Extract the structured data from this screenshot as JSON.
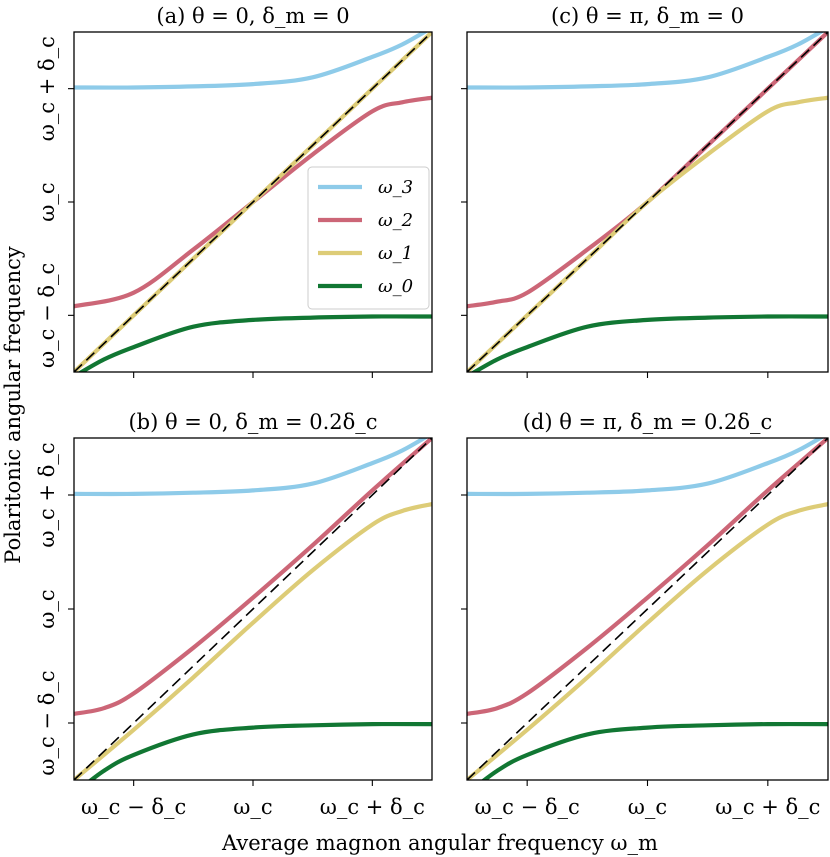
{
  "figure": {
    "xlabel": "Average magnon angular frequency ω_m",
    "ylabel": "Polaritonic angular frequency"
  },
  "chart_data": [
    {
      "type": "line",
      "panel": "a",
      "title": "(a) θ = 0, δ_m = 0",
      "theta": 0,
      "delta_m": 0,
      "x_range": [
        -1.5,
        1.5
      ],
      "y_range": [
        -1.5,
        1.5
      ],
      "x_ticks": [
        -1,
        0,
        1
      ],
      "y_ticks": [
        -1,
        0,
        1
      ],
      "x_tick_labels": [
        "ω_c − δ_c",
        "ω_c",
        "ω_c + δ_c"
      ],
      "y_tick_labels": [
        "ω_c − δ_c",
        "ω_c",
        "ω_c + δ_c"
      ],
      "show_xticklabels": false,
      "show_yticklabels": true,
      "series": [
        {
          "name": "ω_3",
          "color": "#8ecbe9",
          "x": [
            -1.5,
            -1,
            -0.5,
            0,
            0.5,
            1,
            1.25,
            1.5
          ],
          "values": [
            1.01,
            1.01,
            1.02,
            1.04,
            1.1,
            1.28,
            1.39,
            1.54
          ]
        },
        {
          "name": "ω_2",
          "color": "#cc6677",
          "x": [
            -1.5,
            -1,
            -0.5,
            0,
            0.5,
            1,
            1.25,
            1.5
          ],
          "values": [
            -0.92,
            -0.8,
            -0.42,
            0,
            0.42,
            0.8,
            0.88,
            0.92
          ]
        },
        {
          "name": "ω_1",
          "color": "#ddcc77",
          "x": [
            -1.5,
            -1,
            -0.5,
            0,
            0.5,
            1,
            1.5
          ],
          "values": [
            -1.5,
            -1,
            -0.5,
            0,
            0.5,
            1,
            1.5
          ]
        },
        {
          "name": "ω_0",
          "color": "#117733",
          "x": [
            -1.5,
            -1.25,
            -1,
            -0.5,
            0,
            0.5,
            1,
            1.5
          ],
          "values": [
            -1.54,
            -1.39,
            -1.28,
            -1.1,
            -1.04,
            -1.02,
            -1.01,
            -1.01
          ]
        }
      ],
      "reference_line": "ω = ω_m"
    },
    {
      "type": "line",
      "panel": "c",
      "title": "(c) θ = π, δ_m = 0",
      "theta": "π",
      "delta_m": 0,
      "x_range": [
        -1.5,
        1.5
      ],
      "y_range": [
        -1.5,
        1.5
      ],
      "x_ticks": [
        -1,
        0,
        1
      ],
      "y_ticks": [
        -1,
        0,
        1
      ],
      "show_xticklabels": false,
      "show_yticklabels": false,
      "series": [
        {
          "name": "ω_3",
          "color": "#8ecbe9",
          "x": [
            -1.5,
            -1,
            -0.5,
            0,
            0.5,
            1,
            1.25,
            1.5
          ],
          "values": [
            1.01,
            1.01,
            1.02,
            1.04,
            1.1,
            1.28,
            1.39,
            1.54
          ]
        },
        {
          "name": "ω_2",
          "color": "#cc6677",
          "x": [
            -1.5,
            -1.25,
            -1,
            -0.5,
            0,
            0.5,
            1,
            1.5
          ],
          "values": [
            -0.92,
            -0.88,
            -0.8,
            -0.42,
            0,
            0.5,
            1,
            1.5
          ]
        },
        {
          "name": "ω_1",
          "color": "#ddcc77",
          "x": [
            -1.5,
            -1,
            -0.5,
            0,
            0.5,
            1,
            1.25,
            1.5
          ],
          "values": [
            -1.5,
            -1,
            -0.5,
            0,
            0.42,
            0.8,
            0.88,
            0.92
          ]
        },
        {
          "name": "ω_0",
          "color": "#117733",
          "x": [
            -1.5,
            -1.25,
            -1,
            -0.5,
            0,
            0.5,
            1,
            1.5
          ],
          "values": [
            -1.54,
            -1.39,
            -1.28,
            -1.1,
            -1.04,
            -1.02,
            -1.01,
            -1.01
          ]
        }
      ],
      "reference_line": "ω = ω_m"
    },
    {
      "type": "line",
      "panel": "b",
      "title": "(b) θ = 0, δ_m = 0.2δ_c",
      "theta": 0,
      "delta_m": "0.2δ_c",
      "x_range": [
        -1.5,
        1.5
      ],
      "y_range": [
        -1.5,
        1.5
      ],
      "x_ticks": [
        -1,
        0,
        1
      ],
      "y_ticks": [
        -1,
        0,
        1
      ],
      "show_xticklabels": true,
      "show_yticklabels": true,
      "series": [
        {
          "name": "ω_3",
          "color": "#8ecbe9",
          "x": [
            -1.5,
            -1,
            -0.5,
            0,
            0.5,
            1,
            1.25,
            1.5
          ],
          "values": [
            1.01,
            1.01,
            1.02,
            1.04,
            1.1,
            1.28,
            1.39,
            1.54
          ]
        },
        {
          "name": "ω_2",
          "color": "#cc6677",
          "x": [
            -1.5,
            -1.25,
            -1,
            -0.5,
            0,
            0.5,
            1,
            1.5
          ],
          "values": [
            -0.92,
            -0.87,
            -0.74,
            -0.34,
            0.1,
            0.56,
            1.04,
            1.5
          ]
        },
        {
          "name": "ω_1",
          "color": "#ddcc77",
          "x": [
            -1.5,
            -1,
            -0.5,
            0,
            0.5,
            1,
            1.25,
            1.5
          ],
          "values": [
            -1.5,
            -1.06,
            -0.6,
            -0.12,
            0.34,
            0.74,
            0.86,
            0.92
          ]
        },
        {
          "name": "ω_0",
          "color": "#117733",
          "x": [
            -1.5,
            -1.25,
            -1,
            -0.5,
            0,
            0.5,
            1,
            1.5
          ],
          "values": [
            -1.62,
            -1.42,
            -1.28,
            -1.1,
            -1.04,
            -1.02,
            -1.01,
            -1.01
          ]
        }
      ],
      "reference_line": "ω = ω_m"
    },
    {
      "type": "line",
      "panel": "d",
      "title": "(d) θ = π, δ_m = 0.2δ_c",
      "theta": "π",
      "delta_m": "0.2δ_c",
      "x_range": [
        -1.5,
        1.5
      ],
      "y_range": [
        -1.5,
        1.5
      ],
      "x_ticks": [
        -1,
        0,
        1
      ],
      "y_ticks": [
        -1,
        0,
        1
      ],
      "show_xticklabels": true,
      "show_yticklabels": false,
      "series": [
        {
          "name": "ω_3",
          "color": "#8ecbe9",
          "x": [
            -1.5,
            -1,
            -0.5,
            0,
            0.5,
            1,
            1.25,
            1.5
          ],
          "values": [
            1.01,
            1.01,
            1.02,
            1.04,
            1.1,
            1.28,
            1.39,
            1.54
          ]
        },
        {
          "name": "ω_2",
          "color": "#cc6677",
          "x": [
            -1.5,
            -1.25,
            -1,
            -0.5,
            0,
            0.5,
            1,
            1.5
          ],
          "values": [
            -0.92,
            -0.87,
            -0.74,
            -0.34,
            0.1,
            0.56,
            1.04,
            1.5
          ]
        },
        {
          "name": "ω_1",
          "color": "#ddcc77",
          "x": [
            -1.5,
            -1,
            -0.5,
            0,
            0.5,
            1,
            1.25,
            1.5
          ],
          "values": [
            -1.5,
            -1.06,
            -0.6,
            -0.12,
            0.34,
            0.74,
            0.86,
            0.92
          ]
        },
        {
          "name": "ω_0",
          "color": "#117733",
          "x": [
            -1.5,
            -1.25,
            -1,
            -0.5,
            0,
            0.5,
            1,
            1.5
          ],
          "values": [
            -1.62,
            -1.42,
            -1.28,
            -1.1,
            -1.04,
            -1.02,
            -1.01,
            -1.01
          ]
        }
      ],
      "reference_line": "ω = ω_m"
    }
  ],
  "legend": {
    "placement": "center-right of panel (a)",
    "entries": [
      {
        "label": "ω_3",
        "color": "#8ecbe9"
      },
      {
        "label": "ω_2",
        "color": "#cc6677"
      },
      {
        "label": "ω_1",
        "color": "#ddcc77"
      },
      {
        "label": "ω_0",
        "color": "#117733"
      }
    ]
  }
}
